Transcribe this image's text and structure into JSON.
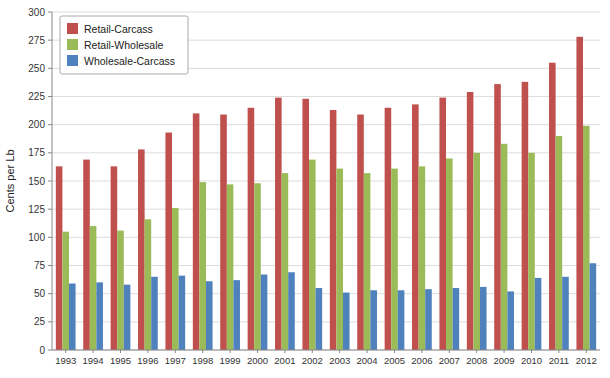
{
  "chart_data": {
    "type": "bar",
    "categories": [
      "1993",
      "1994",
      "1995",
      "1996",
      "1997",
      "1998",
      "1999",
      "2000",
      "2001",
      "2002",
      "2003",
      "2004",
      "2005",
      "2006",
      "2007",
      "2008",
      "2009",
      "2010",
      "2011",
      "2012"
    ],
    "series": [
      {
        "name": "Retail-Carcass",
        "color": "#C0504D",
        "values": [
          163,
          169,
          163,
          178,
          193,
          210,
          209,
          215,
          224,
          223,
          213,
          209,
          215,
          218,
          224,
          229,
          236,
          238,
          255,
          278
        ]
      },
      {
        "name": "Retail-Wholesale",
        "color": "#9BBB59",
        "values": [
          105,
          110,
          106,
          116,
          126,
          149,
          147,
          148,
          157,
          169,
          161,
          157,
          161,
          163,
          170,
          175,
          183,
          175,
          190,
          199
        ]
      },
      {
        "name": "Wholesale-Carcass",
        "color": "#4F81BD",
        "values": [
          59,
          60,
          58,
          65,
          66,
          61,
          62,
          67,
          69,
          55,
          51,
          53,
          53,
          54,
          55,
          56,
          52,
          64,
          65,
          77
        ]
      }
    ],
    "ylabel": "Cents per Lb",
    "ylim": [
      0,
      300
    ],
    "yticks": [
      0,
      25,
      50,
      75,
      100,
      125,
      150,
      175,
      200,
      225,
      250,
      275,
      300
    ],
    "grid": true,
    "legend": "upper left"
  }
}
